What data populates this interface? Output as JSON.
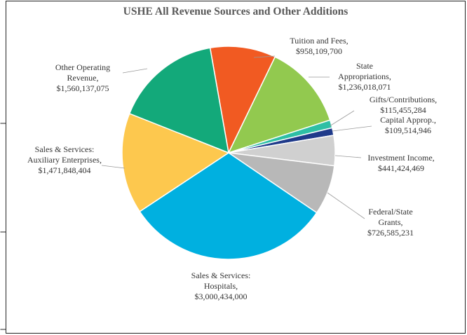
{
  "chart_data": {
    "type": "pie",
    "title": "USHE All Revenue Sources and Other Additions",
    "categories": [
      "Tuition and Fees,",
      "State Appropriations,",
      "Gifts/Contributions,",
      "Capital Approp.,",
      "Investment Income,",
      "Federal/State Grants,",
      "Sales & Services: Hospitals,",
      "Sales & Services: Auxiliary Enterprises,",
      "Other Operating Revenue,"
    ],
    "values": [
      958109700,
      1236018071,
      115455284,
      109514946,
      441424469,
      726585231,
      3000434000,
      1471848404,
      1560137075
    ],
    "value_labels": [
      "$958,109,700",
      "$1,236,018,071",
      "$115,455,284",
      "$109,514,946",
      "$441,424,469",
      "$726,585,231",
      "$3,000,434,000",
      "$1,471,848,404",
      "$1,560,137,075"
    ],
    "colors": [
      "#f15a22",
      "#92c94f",
      "#2ebfa5",
      "#1f3a8a",
      "#d0d0d0",
      "#b8b8b8",
      "#00b0e0",
      "#fdc84e",
      "#13a97a"
    ]
  }
}
